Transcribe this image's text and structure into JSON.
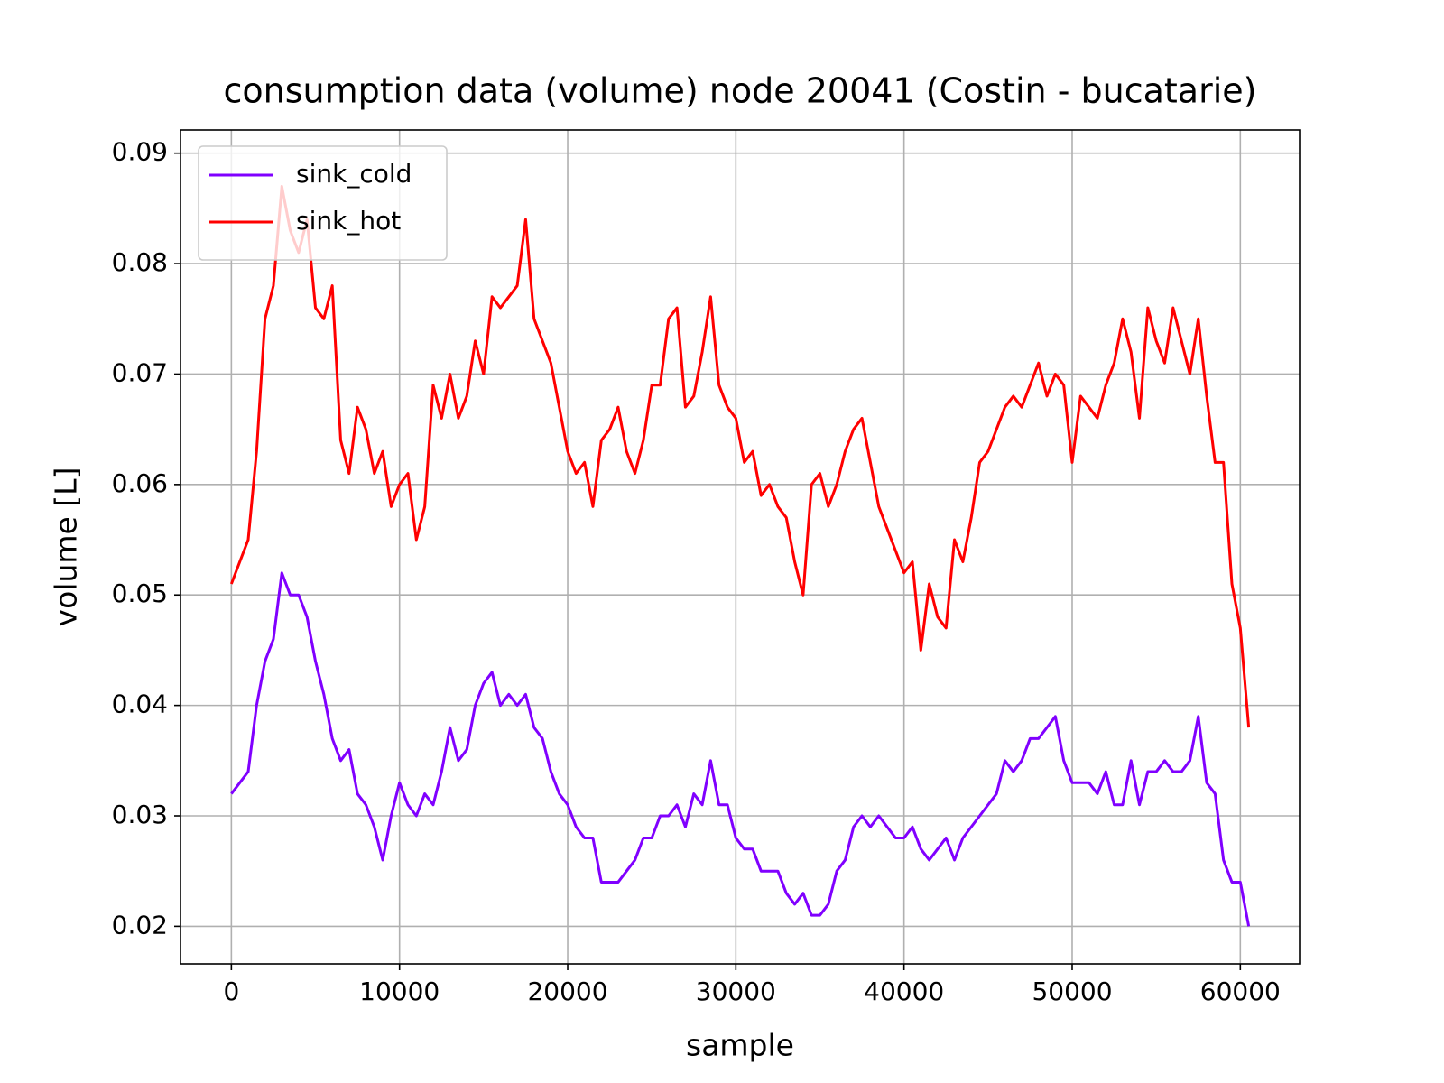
{
  "chart_data": {
    "type": "line",
    "title": "consumption data (volume) node 20041 (Costin - bucatarie)",
    "x_label": "sample",
    "y_label": "volume [L]",
    "xlim": [
      -3025,
      63525
    ],
    "ylim": [
      0.0166,
      0.0921
    ],
    "xticks": [
      0,
      10000,
      20000,
      30000,
      40000,
      50000,
      60000
    ],
    "yticks": [
      0.02,
      0.03,
      0.04,
      0.05,
      0.06,
      0.07,
      0.08,
      0.09
    ],
    "grid": true,
    "legend": "upper-left",
    "x": [
      0,
      500,
      1000,
      1500,
      2000,
      2500,
      3000,
      3500,
      4000,
      4500,
      5000,
      5500,
      6000,
      6500,
      7000,
      7500,
      8000,
      8500,
      9000,
      9500,
      10000,
      10500,
      11000,
      11500,
      12000,
      12500,
      13000,
      13500,
      14000,
      14500,
      15000,
      15500,
      16000,
      16500,
      17000,
      17500,
      18000,
      18500,
      19000,
      19500,
      20000,
      20500,
      21000,
      21500,
      22000,
      22500,
      23000,
      23500,
      24000,
      24500,
      25000,
      25500,
      26000,
      26500,
      27000,
      27500,
      28000,
      28500,
      29000,
      29500,
      30000,
      30500,
      31000,
      31500,
      32000,
      32500,
      33000,
      33500,
      34000,
      34500,
      35000,
      35500,
      36000,
      36500,
      37000,
      37500,
      38000,
      38500,
      39000,
      39500,
      40000,
      40500,
      41000,
      41500,
      42000,
      42500,
      43000,
      43500,
      44000,
      44500,
      45000,
      45500,
      46000,
      46500,
      47000,
      47500,
      48000,
      48500,
      49000,
      49500,
      50000,
      50500,
      51000,
      51500,
      52000,
      52500,
      53000,
      53500,
      54000,
      54500,
      55000,
      55500,
      56000,
      56500,
      57000,
      57500,
      58000,
      58500,
      59000,
      59500,
      60000,
      60500
    ],
    "series": [
      {
        "name": "sink_cold",
        "color": "#8000ff",
        "values": [
          0.032,
          0.033,
          0.034,
          0.04,
          0.044,
          0.046,
          0.052,
          0.05,
          0.05,
          0.048,
          0.044,
          0.041,
          0.037,
          0.035,
          0.036,
          0.032,
          0.031,
          0.029,
          0.026,
          0.03,
          0.033,
          0.031,
          0.03,
          0.032,
          0.031,
          0.034,
          0.038,
          0.035,
          0.036,
          0.04,
          0.042,
          0.043,
          0.04,
          0.041,
          0.04,
          0.041,
          0.038,
          0.037,
          0.034,
          0.032,
          0.031,
          0.029,
          0.028,
          0.028,
          0.024,
          0.024,
          0.024,
          0.025,
          0.026,
          0.028,
          0.028,
          0.03,
          0.03,
          0.031,
          0.029,
          0.032,
          0.031,
          0.035,
          0.031,
          0.031,
          0.028,
          0.027,
          0.027,
          0.025,
          0.025,
          0.025,
          0.023,
          0.022,
          0.023,
          0.021,
          0.021,
          0.022,
          0.025,
          0.026,
          0.029,
          0.03,
          0.029,
          0.03,
          0.029,
          0.028,
          0.028,
          0.029,
          0.027,
          0.026,
          0.027,
          0.028,
          0.026,
          0.028,
          0.029,
          0.03,
          0.031,
          0.032,
          0.035,
          0.034,
          0.035,
          0.037,
          0.037,
          0.038,
          0.039,
          0.035,
          0.033,
          0.033,
          0.033,
          0.032,
          0.034,
          0.031,
          0.031,
          0.035,
          0.031,
          0.034,
          0.034,
          0.035,
          0.034,
          0.034,
          0.035,
          0.039,
          0.033,
          0.032,
          0.026,
          0.024,
          0.024,
          0.02
        ]
      },
      {
        "name": "sink_hot",
        "color": "#ff0000",
        "values": [
          0.051,
          0.053,
          0.055,
          0.063,
          0.075,
          0.078,
          0.087,
          0.083,
          0.081,
          0.084,
          0.076,
          0.075,
          0.078,
          0.064,
          0.061,
          0.067,
          0.065,
          0.061,
          0.063,
          0.058,
          0.06,
          0.061,
          0.055,
          0.058,
          0.069,
          0.066,
          0.07,
          0.066,
          0.068,
          0.073,
          0.07,
          0.077,
          0.076,
          0.077,
          0.078,
          0.084,
          0.075,
          0.073,
          0.071,
          0.067,
          0.063,
          0.061,
          0.062,
          0.058,
          0.064,
          0.065,
          0.067,
          0.063,
          0.061,
          0.064,
          0.069,
          0.069,
          0.075,
          0.076,
          0.067,
          0.068,
          0.072,
          0.077,
          0.069,
          0.067,
          0.066,
          0.062,
          0.063,
          0.059,
          0.06,
          0.058,
          0.057,
          0.053,
          0.05,
          0.06,
          0.061,
          0.058,
          0.06,
          0.063,
          0.065,
          0.066,
          0.062,
          0.058,
          0.056,
          0.054,
          0.052,
          0.053,
          0.045,
          0.051,
          0.048,
          0.047,
          0.055,
          0.053,
          0.057,
          0.062,
          0.063,
          0.065,
          0.067,
          0.068,
          0.067,
          0.069,
          0.071,
          0.068,
          0.07,
          0.069,
          0.062,
          0.068,
          0.067,
          0.066,
          0.069,
          0.071,
          0.075,
          0.072,
          0.066,
          0.076,
          0.073,
          0.071,
          0.076,
          0.073,
          0.07,
          0.075,
          0.068,
          0.062,
          0.062,
          0.051,
          0.047,
          0.038
        ]
      }
    ]
  }
}
